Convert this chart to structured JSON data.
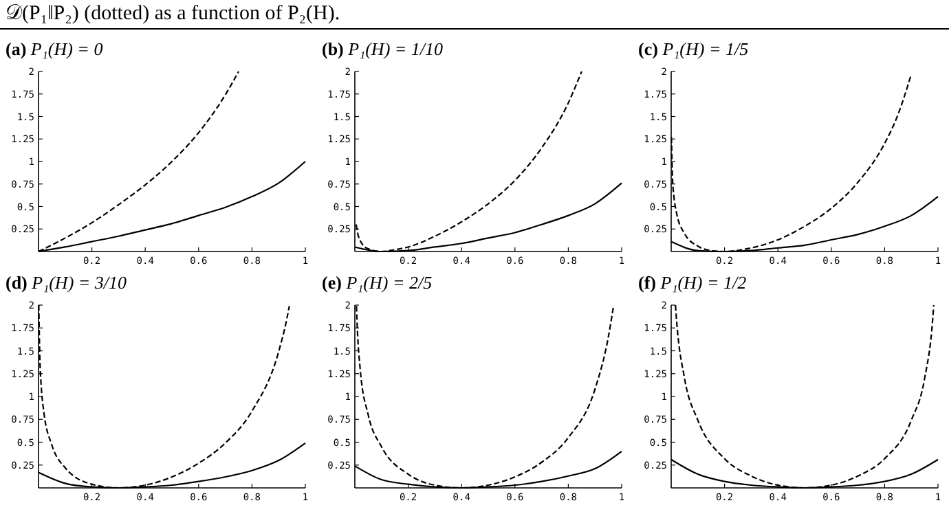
{
  "chart_data": [
    {
      "type": "line",
      "title": "(a) P₁(H) = 0",
      "annotations": [
        "𝒟(P₁‖P₂) (dotted) as a function of P₂(H)."
      ],
      "xlim": [
        0,
        1
      ],
      "ylim": [
        0,
        2
      ],
      "xticks": [
        0.2,
        0.4,
        0.6,
        0.8,
        1
      ],
      "yticks": [
        0.25,
        0.5,
        0.75,
        1,
        1.25,
        1.5,
        1.75,
        2
      ],
      "x": [
        0,
        0.1,
        0.2,
        0.3,
        0.4,
        0.5,
        0.6,
        0.7,
        0.8,
        0.9,
        1
      ],
      "series": [
        {
          "color": "#000000",
          "line_style": "solid",
          "values": [
            0,
            0.05,
            0.11,
            0.17,
            0.24,
            0.31,
            0.4,
            0.49,
            0.61,
            0.76,
            1
          ]
        },
        {
          "color": "#000000",
          "line_style": "dashed",
          "x": [
            0,
            0.1,
            0.2,
            0.3,
            0.4,
            0.5,
            0.6,
            0.7,
            0.75
          ],
          "values": [
            0,
            0.15,
            0.32,
            0.52,
            0.74,
            1,
            1.32,
            1.74,
            2
          ]
        }
      ]
    },
    {
      "type": "line",
      "title": "(b) P₁(H) = 1/10",
      "xlim": [
        0,
        1
      ],
      "ylim": [
        0,
        2
      ],
      "xticks": [
        0.2,
        0.4,
        0.6,
        0.8,
        1
      ],
      "yticks": [
        0.25,
        0.5,
        0.75,
        1,
        1.25,
        1.5,
        1.75,
        2
      ],
      "x": [
        0,
        0.1,
        0.2,
        0.3,
        0.4,
        0.5,
        0.6,
        0.7,
        0.8,
        0.9,
        1
      ],
      "series": [
        {
          "color": "#000000",
          "line_style": "solid",
          "values": [
            0.05,
            0,
            0.01,
            0.05,
            0.09,
            0.15,
            0.21,
            0.3,
            0.4,
            0.53,
            0.76
          ]
        },
        {
          "color": "#000000",
          "line_style": "dashed",
          "x": [
            0.005,
            0.01,
            0.02,
            0.05,
            0.1,
            0.15,
            0.2,
            0.3,
            0.4,
            0.5,
            0.6,
            0.7,
            0.8,
            0.85
          ],
          "values": [
            0.3,
            0.21,
            0.12,
            0.03,
            0,
            0.02,
            0.05,
            0.17,
            0.33,
            0.53,
            0.79,
            1.15,
            1.65,
            2
          ]
        }
      ]
    },
    {
      "type": "line",
      "title": "(c) P₁(H) = 1/5",
      "xlim": [
        0,
        1
      ],
      "ylim": [
        0,
        2
      ],
      "xticks": [
        0.2,
        0.4,
        0.6,
        0.8,
        1
      ],
      "yticks": [
        0.25,
        0.5,
        0.75,
        1,
        1.25,
        1.5,
        1.75,
        2
      ],
      "x": [
        0,
        0.1,
        0.2,
        0.3,
        0.4,
        0.5,
        0.6,
        0.7,
        0.8,
        0.9,
        1
      ],
      "series": [
        {
          "color": "#000000",
          "line_style": "solid",
          "values": [
            0.11,
            0.01,
            0,
            0.01,
            0.04,
            0.07,
            0.13,
            0.19,
            0.28,
            0.4,
            0.61
          ]
        },
        {
          "color": "#000000",
          "line_style": "dashed",
          "x": [
            0.001,
            0.005,
            0.01,
            0.02,
            0.05,
            0.1,
            0.15,
            0.2,
            0.3,
            0.4,
            0.5,
            0.6,
            0.7,
            0.8,
            0.85,
            0.9
          ],
          "values": [
            1.27,
            0.81,
            0.62,
            0.43,
            0.2,
            0.06,
            0.01,
            0,
            0.04,
            0.13,
            0.28,
            0.48,
            0.77,
            1.2,
            1.52,
            1.97
          ]
        }
      ]
    },
    {
      "type": "line",
      "title": "(d) P₁(H) = 3/10",
      "xlim": [
        0,
        1
      ],
      "ylim": [
        0,
        2
      ],
      "xticks": [
        0.2,
        0.4,
        0.6,
        0.8,
        1
      ],
      "yticks": [
        0.25,
        0.5,
        0.75,
        1,
        1.25,
        1.5,
        1.75,
        2
      ],
      "x": [
        0,
        0.1,
        0.2,
        0.3,
        0.4,
        0.5,
        0.6,
        0.7,
        0.8,
        0.9,
        1
      ],
      "series": [
        {
          "color": "#000000",
          "line_style": "solid",
          "values": [
            0.17,
            0.05,
            0.01,
            0,
            0.01,
            0.03,
            0.07,
            0.12,
            0.19,
            0.3,
            0.49
          ]
        },
        {
          "color": "#000000",
          "line_style": "dashed",
          "x": [
            0.001,
            0.005,
            0.01,
            0.02,
            0.05,
            0.1,
            0.2,
            0.3,
            0.4,
            0.5,
            0.6,
            0.7,
            0.8,
            0.9,
            0.93,
            0.94
          ],
          "values": [
            2,
            1.42,
            1.12,
            0.83,
            0.47,
            0.22,
            0.04,
            0,
            0.03,
            0.12,
            0.27,
            0.49,
            0.84,
            1.49,
            1.84,
            1.99
          ]
        }
      ]
    },
    {
      "type": "line",
      "title": "(e) P₁(H) = 2/5",
      "xlim": [
        0,
        1
      ],
      "ylim": [
        0,
        2
      ],
      "xticks": [
        0.2,
        0.4,
        0.6,
        0.8,
        1
      ],
      "yticks": [
        0.25,
        0.5,
        0.75,
        1,
        1.25,
        1.5,
        1.75,
        2
      ],
      "x": [
        0,
        0.1,
        0.2,
        0.3,
        0.4,
        0.5,
        0.6,
        0.7,
        0.8,
        0.9,
        1
      ],
      "series": [
        {
          "color": "#000000",
          "line_style": "solid",
          "values": [
            0.24,
            0.09,
            0.04,
            0.01,
            0,
            0.01,
            0.03,
            0.07,
            0.13,
            0.21,
            0.4
          ]
        },
        {
          "color": "#000000",
          "line_style": "dashed",
          "x": [
            0.006,
            0.01,
            0.02,
            0.05,
            0.1,
            0.2,
            0.3,
            0.4,
            0.5,
            0.6,
            0.7,
            0.8,
            0.9,
            0.95,
            0.97
          ],
          "values": [
            1.99,
            1.7,
            1.3,
            0.8,
            0.45,
            0.15,
            0.03,
            0,
            0.03,
            0.12,
            0.28,
            0.55,
            1.08,
            1.65,
            2
          ]
        }
      ]
    },
    {
      "type": "line",
      "title": "(f) P₁(H) = 1/2",
      "xlim": [
        0,
        1
      ],
      "ylim": [
        0,
        2
      ],
      "xticks": [
        0.2,
        0.4,
        0.6,
        0.8,
        1
      ],
      "yticks": [
        0.25,
        0.5,
        0.75,
        1,
        1.25,
        1.5,
        1.75,
        2
      ],
      "x": [
        0,
        0.1,
        0.2,
        0.3,
        0.4,
        0.5,
        0.6,
        0.7,
        0.8,
        0.9,
        1
      ],
      "series": [
        {
          "color": "#000000",
          "line_style": "solid",
          "values": [
            0.31,
            0.15,
            0.07,
            0.03,
            0.01,
            0,
            0.01,
            0.03,
            0.07,
            0.15,
            0.31
          ]
        },
        {
          "color": "#000000",
          "line_style": "dashed",
          "x": [
            0.016,
            0.02,
            0.05,
            0.1,
            0.2,
            0.3,
            0.4,
            0.5,
            0.6,
            0.7,
            0.8,
            0.9,
            0.95,
            0.98,
            0.984
          ],
          "values": [
            2,
            1.84,
            1.2,
            0.74,
            0.32,
            0.13,
            0.03,
            0,
            0.03,
            0.13,
            0.32,
            0.74,
            1.2,
            1.84,
            2
          ]
        }
      ]
    }
  ]
}
